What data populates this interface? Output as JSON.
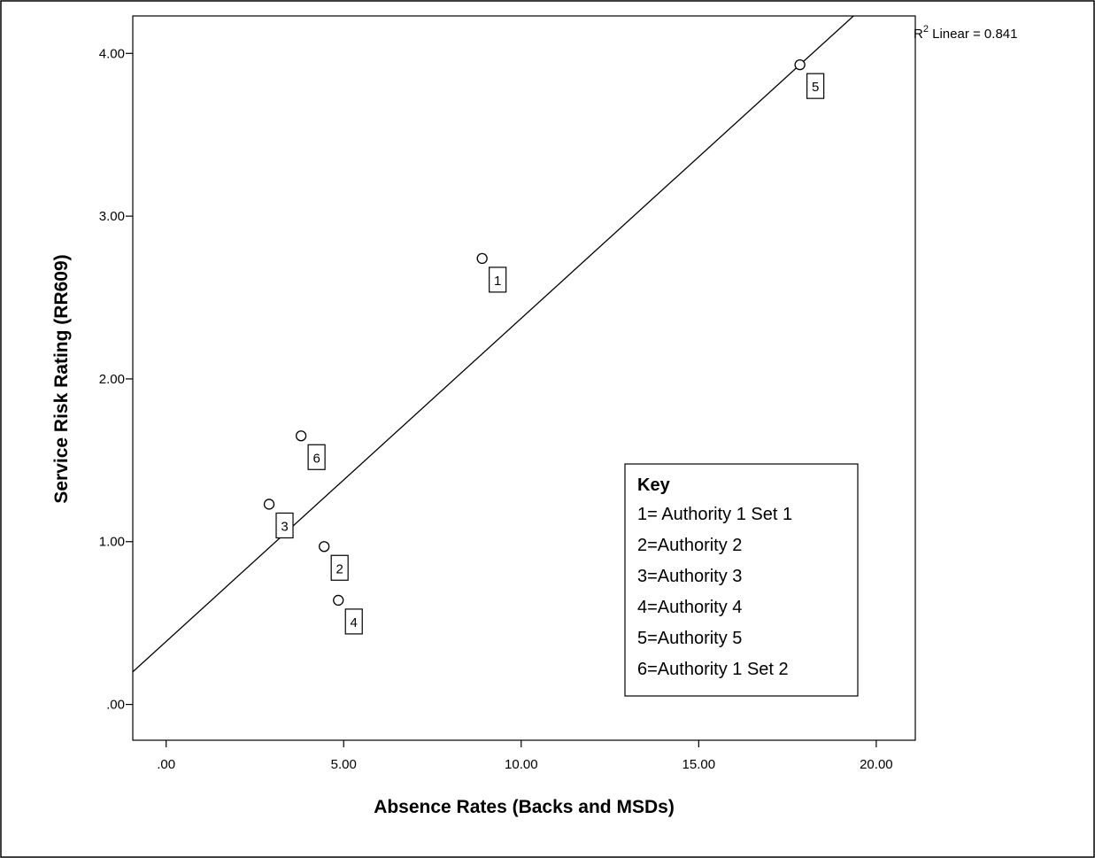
{
  "chart_data": {
    "type": "scatter",
    "title": "",
    "xlabel": "Absence Rates (Backs and MSDs)",
    "ylabel": "Service Risk Rating (RR609)",
    "xlim": [
      -0.94,
      21.1
    ],
    "ylim": [
      -0.22,
      4.23
    ],
    "x_ticks": [
      0,
      5,
      10,
      15,
      20
    ],
    "x_tick_labels": [
      ".00",
      "5.00",
      "10.00",
      "15.00",
      "20.00"
    ],
    "y_ticks": [
      0,
      1,
      2,
      3,
      4
    ],
    "y_tick_labels": [
      ".00",
      "1.00",
      "2.00",
      "3.00",
      "4.00"
    ],
    "grid": false,
    "points": [
      {
        "label": "1",
        "x": 8.9,
        "y": 2.74
      },
      {
        "label": "2",
        "x": 4.45,
        "y": 0.97
      },
      {
        "label": "3",
        "x": 2.9,
        "y": 1.23
      },
      {
        "label": "4",
        "x": 4.85,
        "y": 0.64
      },
      {
        "label": "5",
        "x": 17.85,
        "y": 3.93
      },
      {
        "label": "6",
        "x": 3.8,
        "y": 1.65
      }
    ],
    "fit_line": {
      "intercept": 0.387,
      "slope": 0.1985
    },
    "r_squared": {
      "prefix": "R",
      "exponent": "2",
      "text": " Linear = 0.841"
    },
    "key": {
      "title": "Key",
      "entries": [
        "1= Authority 1 Set 1",
        "2=Authority 2",
        "3=Authority 3",
        "4=Authority 4",
        "5=Authority 5",
        "6=Authority 1 Set 2"
      ]
    }
  }
}
